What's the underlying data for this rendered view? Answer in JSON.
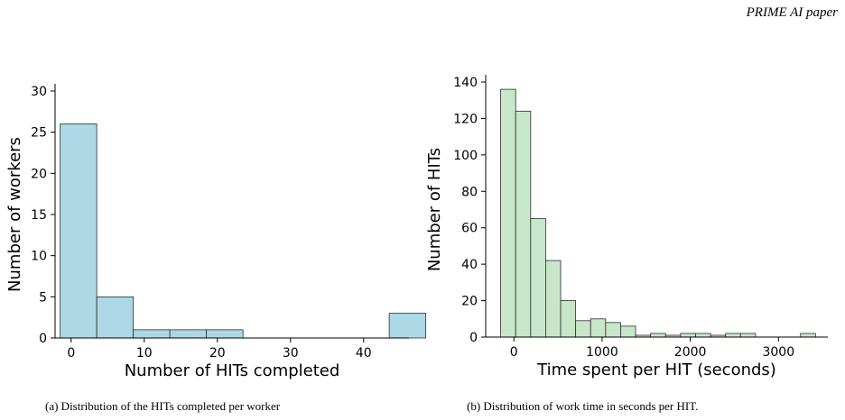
{
  "header": {
    "tag": "PRIME AI paper"
  },
  "captions": {
    "a": "(a) Distribution of the HITs completed per worker",
    "b": "(b) Distribution of work time in seconds per HIT."
  },
  "chart_data": [
    {
      "type": "bar",
      "title": "",
      "xlabel": "Number of HITs completed",
      "ylabel": "Number of workers",
      "xlim": [
        -2.2,
        46.2
      ],
      "ylim": [
        0,
        30
      ],
      "xticks": [
        0,
        10,
        20,
        30,
        40
      ],
      "yticks": [
        0,
        5,
        10,
        15,
        20,
        25,
        30
      ],
      "bar_color": "#add8e6",
      "bins": [
        {
          "x0": -1.5,
          "x1": 3.5,
          "value": 26
        },
        {
          "x0": 3.5,
          "x1": 8.5,
          "value": 5
        },
        {
          "x0": 8.5,
          "x1": 13.5,
          "value": 1
        },
        {
          "x0": 13.5,
          "x1": 18.5,
          "value": 1
        },
        {
          "x0": 18.5,
          "x1": 23.5,
          "value": 1
        },
        {
          "x0": 23.5,
          "x1": 28.5,
          "value": 0
        },
        {
          "x0": 28.5,
          "x1": 33.5,
          "value": 0
        },
        {
          "x0": 33.5,
          "x1": 38.5,
          "value": 0
        },
        {
          "x0": 38.5,
          "x1": 43.5,
          "value": 0
        },
        {
          "x0": 43.5,
          "x1": 48.5,
          "value": 3
        }
      ]
    },
    {
      "type": "bar",
      "title": "",
      "xlabel": "Time spent per HIT (seconds)",
      "ylabel": "Number of HITs",
      "xlim": [
        -320,
        3560
      ],
      "ylim": [
        0,
        140
      ],
      "xticks": [
        0,
        1000,
        2000,
        3000
      ],
      "yticks": [
        0,
        20,
        40,
        60,
        80,
        100,
        120,
        140
      ],
      "bar_color": "#c8e6c9",
      "bins": [
        {
          "x0": -150,
          "x1": 20,
          "value": 136
        },
        {
          "x0": 20,
          "x1": 190,
          "value": 124
        },
        {
          "x0": 190,
          "x1": 360,
          "value": 65
        },
        {
          "x0": 360,
          "x1": 530,
          "value": 42
        },
        {
          "x0": 530,
          "x1": 700,
          "value": 20
        },
        {
          "x0": 700,
          "x1": 870,
          "value": 9
        },
        {
          "x0": 870,
          "x1": 1040,
          "value": 10
        },
        {
          "x0": 1040,
          "x1": 1210,
          "value": 8
        },
        {
          "x0": 1210,
          "x1": 1380,
          "value": 6
        },
        {
          "x0": 1380,
          "x1": 1550,
          "value": 1
        },
        {
          "x0": 1550,
          "x1": 1720,
          "value": 2
        },
        {
          "x0": 1720,
          "x1": 1890,
          "value": 1
        },
        {
          "x0": 1890,
          "x1": 2060,
          "value": 2
        },
        {
          "x0": 2060,
          "x1": 2230,
          "value": 2
        },
        {
          "x0": 2230,
          "x1": 2400,
          "value": 1
        },
        {
          "x0": 2400,
          "x1": 2570,
          "value": 2
        },
        {
          "x0": 2570,
          "x1": 2740,
          "value": 2
        },
        {
          "x0": 2740,
          "x1": 2910,
          "value": 0
        },
        {
          "x0": 2910,
          "x1": 3080,
          "value": 0
        },
        {
          "x0": 3080,
          "x1": 3250,
          "value": 0
        },
        {
          "x0": 3250,
          "x1": 3420,
          "value": 2
        }
      ]
    }
  ]
}
